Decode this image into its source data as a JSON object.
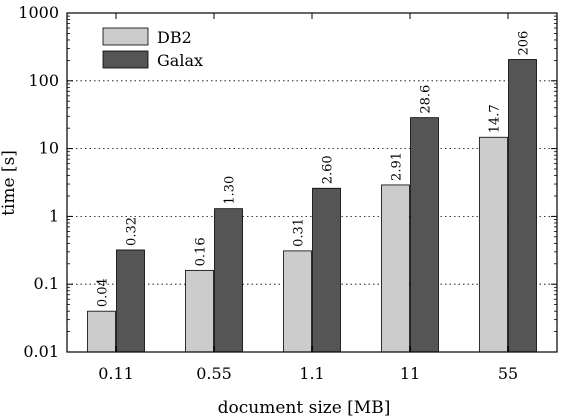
{
  "chart_data": {
    "type": "bar",
    "title": "",
    "xlabel": "document size [MB]",
    "ylabel": "time [s]",
    "yscale": "log",
    "ylim": [
      0.01,
      1000
    ],
    "yticks": [
      "0.01",
      "0.1",
      "1",
      "10",
      "100",
      "1000"
    ],
    "ytick_values": [
      0.01,
      0.1,
      1,
      10,
      100,
      1000
    ],
    "grid": "horizontal dotted",
    "legend_position": "top-left",
    "categories": [
      "0.11",
      "0.55",
      "1.1",
      "11",
      "55"
    ],
    "series": [
      {
        "name": "DB2",
        "color": "#cccccc",
        "values": [
          0.04,
          0.16,
          0.31,
          2.91,
          14.7
        ],
        "labels": [
          "0.04",
          "0.16",
          "0.31",
          "2.91",
          "14.7"
        ]
      },
      {
        "name": "Galax",
        "color": "#555555",
        "values": [
          0.32,
          1.3,
          2.6,
          28.6,
          206
        ],
        "labels": [
          "0.32",
          "1.30",
          "2.60",
          "28.6",
          "206"
        ]
      }
    ]
  }
}
